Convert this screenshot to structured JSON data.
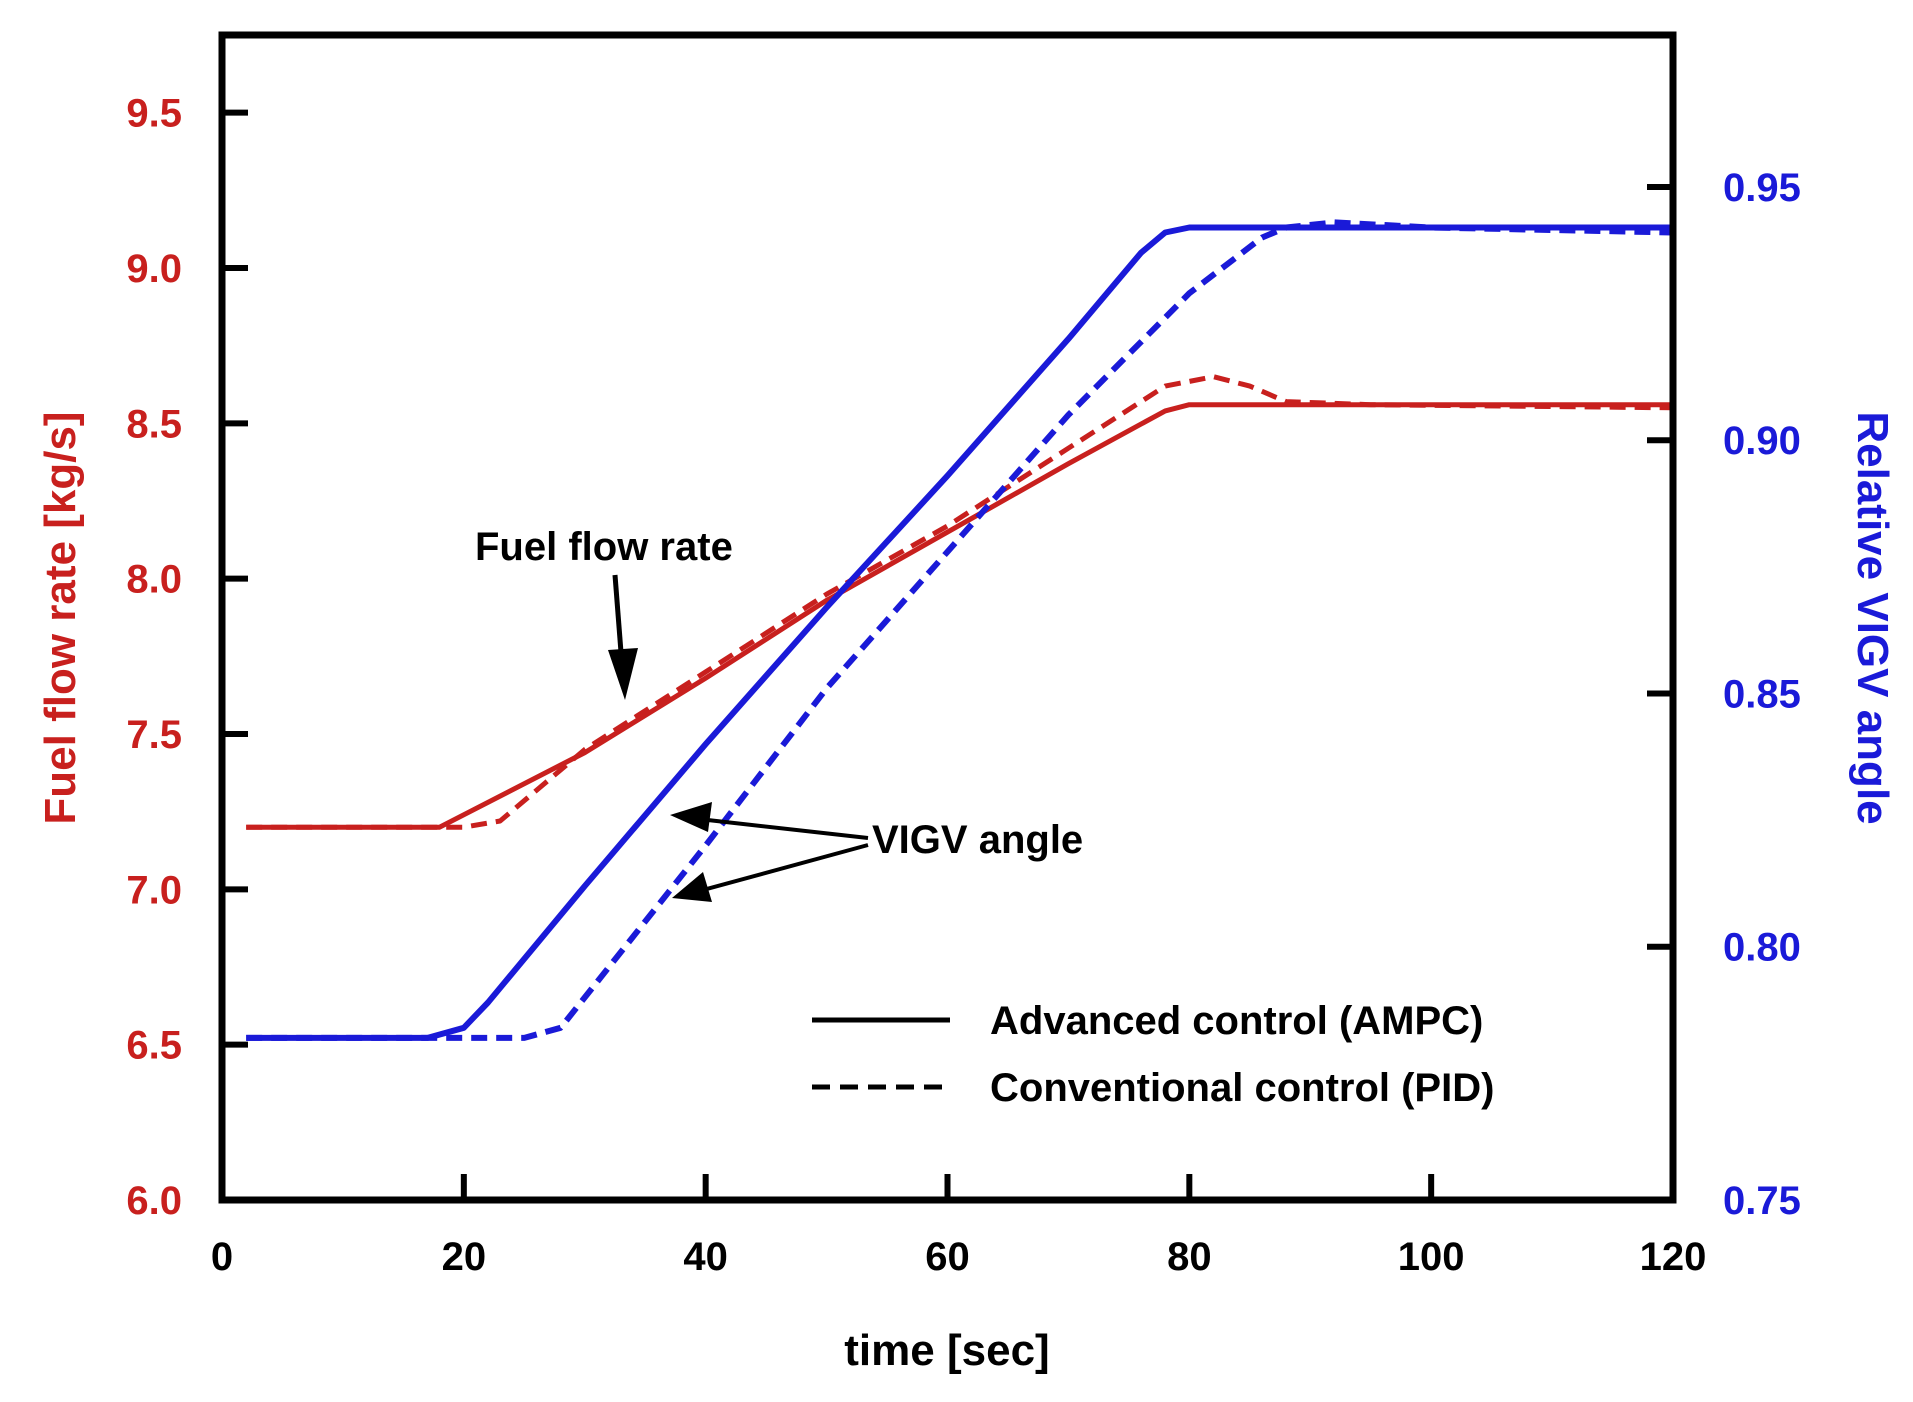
{
  "chart_data": {
    "type": "line",
    "xlabel": "time [sec]",
    "ylabel_left": "Fuel flow rate [kg/s]",
    "ylabel_right": "Relative VIGV angle",
    "xlim": [
      0,
      120
    ],
    "ylim_left": [
      6.0,
      9.75
    ],
    "ylim_right": [
      0.75,
      0.98
    ],
    "x_ticks": [
      "0",
      "20",
      "40",
      "60",
      "80",
      "100",
      "120"
    ],
    "y_left_ticks": [
      "6.0",
      "6.5",
      "7.0",
      "7.5",
      "8.0",
      "8.5",
      "9.0",
      "9.5"
    ],
    "y_right_ticks": [
      "0.75",
      "0.80",
      "0.85",
      "0.90",
      "0.95"
    ],
    "colors": {
      "fuel": "#c8201e",
      "vigv": "#1a1ad8",
      "left_axis_text": "#c8201e",
      "right_axis_text": "#1a1ad8",
      "frame": "#000000"
    },
    "series": [
      {
        "name": "Fuel flow rate - Advanced control (AMPC)",
        "axis": "left",
        "style": "solid",
        "x": [
          2,
          18,
          30,
          40,
          50,
          60,
          70,
          78,
          80,
          90,
          120
        ],
        "y": [
          7.2,
          7.2,
          7.44,
          7.68,
          7.93,
          8.15,
          8.37,
          8.54,
          8.56,
          8.56,
          8.56
        ]
      },
      {
        "name": "Fuel flow rate - Conventional control (PID)",
        "axis": "left",
        "style": "dashed",
        "x": [
          2,
          20,
          23,
          30,
          40,
          50,
          60,
          70,
          78,
          82,
          85,
          88,
          95,
          120
        ],
        "y": [
          7.2,
          7.2,
          7.22,
          7.45,
          7.7,
          7.95,
          8.17,
          8.42,
          8.62,
          8.65,
          8.62,
          8.57,
          8.56,
          8.55
        ]
      },
      {
        "name": "VIGV angle - Advanced control (AMPC)",
        "axis": "right",
        "style": "solid",
        "x": [
          2,
          17,
          20,
          22,
          30,
          40,
          50,
          60,
          70,
          76,
          78,
          80,
          90,
          120
        ],
        "y": [
          0.782,
          0.782,
          0.784,
          0.789,
          0.812,
          0.84,
          0.867,
          0.893,
          0.92,
          0.937,
          0.941,
          0.942,
          0.942,
          0.942
        ]
      },
      {
        "name": "VIGV angle - Conventional control (PID)",
        "axis": "right",
        "style": "dashed",
        "x": [
          2,
          17,
          25,
          28,
          30,
          40,
          50,
          60,
          70,
          80,
          86,
          88,
          92,
          100,
          120
        ],
        "y": [
          0.782,
          0.782,
          0.782,
          0.784,
          0.79,
          0.82,
          0.851,
          0.878,
          0.905,
          0.929,
          0.94,
          0.942,
          0.943,
          0.942,
          0.941
        ]
      }
    ],
    "annotations": [
      {
        "name": "fuel",
        "text": "Fuel flow rate"
      },
      {
        "name": "vigv",
        "text": "VIGV angle"
      }
    ],
    "legend": [
      {
        "label": "Advanced control (AMPC)",
        "style": "solid"
      },
      {
        "label": "Conventional control (PID)",
        "style": "dashed"
      }
    ]
  }
}
